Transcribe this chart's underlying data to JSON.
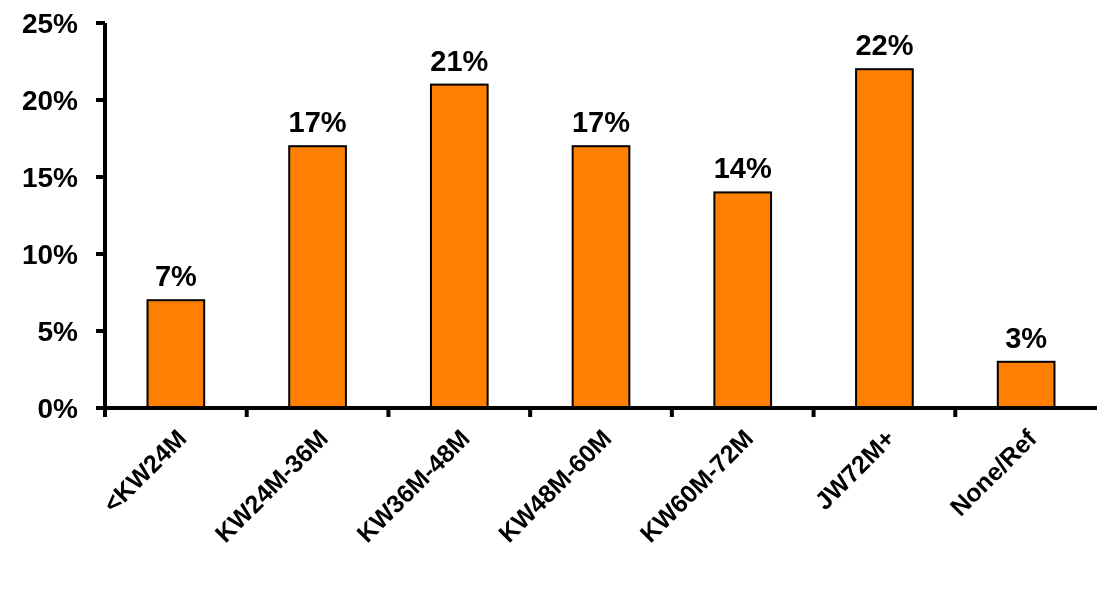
{
  "chart_data": {
    "type": "bar",
    "categories": [
      "<KW24M",
      "KW24M-36M",
      "KW36M-48M",
      "KW48M-60M",
      "KW60M-72M",
      "JW72M+",
      "None/Ref"
    ],
    "values": [
      7,
      17,
      21,
      17,
      14,
      22,
      3
    ],
    "value_labels": [
      "7%",
      "17%",
      "21%",
      "17%",
      "14%",
      "22%",
      "3%"
    ],
    "color": "#ff8000",
    "ylim": [
      0,
      25
    ],
    "yticks": [
      {
        "value": 0,
        "label": "0%"
      },
      {
        "value": 5,
        "label": "5%"
      },
      {
        "value": 10,
        "label": "10%"
      },
      {
        "value": 15,
        "label": "15%"
      },
      {
        "value": 20,
        "label": "20%"
      },
      {
        "value": 25,
        "label": "25%"
      }
    ]
  }
}
